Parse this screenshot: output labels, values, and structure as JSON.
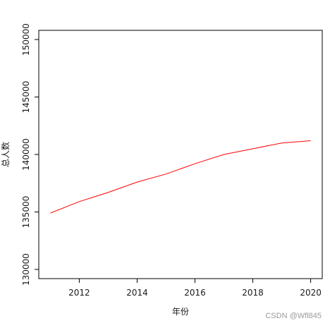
{
  "chart_data": {
    "type": "line",
    "title": "",
    "xlabel": "年份",
    "ylabel": "总人数",
    "xlim": [
      2010.6,
      2020.4
    ],
    "ylim": [
      129200,
      150800
    ],
    "x_ticks": [
      2012,
      2014,
      2016,
      2018,
      2020
    ],
    "y_ticks": [
      130000,
      135000,
      140000,
      145000,
      150000
    ],
    "x_tick_labels": [
      "2012",
      "2014",
      "2016",
      "2018",
      "2020"
    ],
    "y_tick_labels": [
      "130000",
      "135000",
      "140000",
      "145000",
      "150000"
    ],
    "grid": false,
    "series": [
      {
        "color": "#ff0000",
        "x": [
          2011,
          2012,
          2013,
          2014,
          2015,
          2016,
          2017,
          2018,
          2019,
          2020
        ],
        "y": [
          134900,
          135900,
          136700,
          137600,
          138300,
          139200,
          140000,
          140500,
          141000,
          141200
        ]
      }
    ]
  },
  "watermark": "CSDN @Wfl845"
}
